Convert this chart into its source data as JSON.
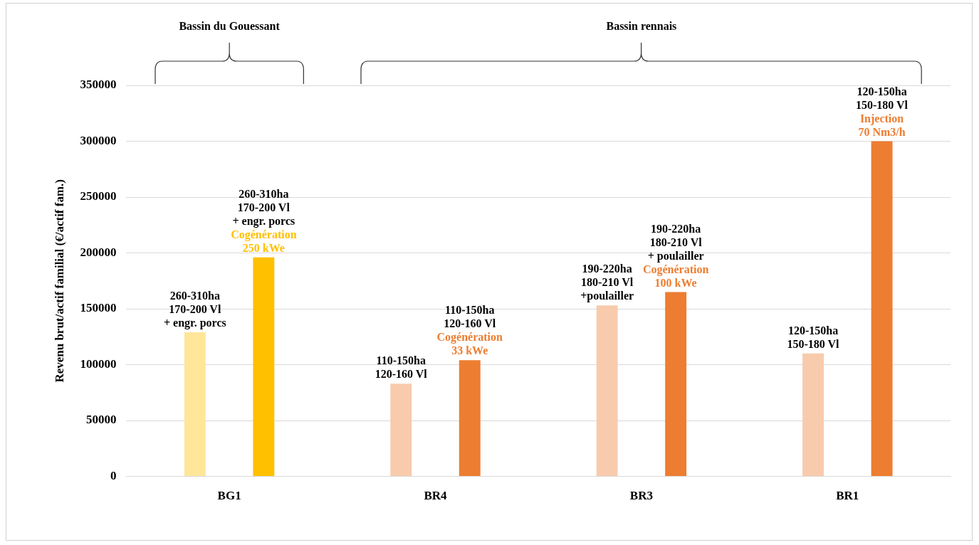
{
  "chart_data": {
    "type": "bar",
    "ylabel": "Revenu brut/actif familial (€/actif fam.)",
    "categories": [
      "BG1",
      "BR4",
      "BR3",
      "BR1"
    ],
    "series": [
      {
        "colors": [
          "#ffe699",
          "#f8cbad",
          "#f8cbad",
          "#f8cbad"
        ],
        "values": [
          129000,
          83000,
          153000,
          110000
        ],
        "value_labels": [
          "260-310ha\n170-200 Vl\n+ engr. porcs",
          "110-150ha\n120-160 Vl",
          "190-220ha\n180-210 Vl\n+poulailler",
          "120-150ha\n150-180 Vl"
        ]
      },
      {
        "colors": [
          "#ffc000",
          "#ed7d31",
          "#ed7d31",
          "#ed7d31"
        ],
        "values": [
          196000,
          104000,
          165000,
          300000
        ],
        "value_labels": [
          "260-310ha\n170-200 Vl\n+ engr. porcs",
          "110-150ha\n120-160 Vl",
          "190-220ha\n180-210 Vl\n+ poulailler",
          "120-150ha\n150-180 Vl"
        ]
      }
    ],
    "ylim": [
      0,
      350000
    ],
    "yticks": [
      0,
      50000,
      100000,
      150000,
      200000,
      250000,
      300000,
      350000
    ],
    "grid": "y",
    "legend": false,
    "annotations": [
      "Bassin du Gouessant",
      "Bassin rennais",
      "Cogénération\n250 kWe",
      "Cogénération\n33 kWe",
      "Cogénération\n100 kWe",
      "Injection\n70 Nm3/h"
    ]
  }
}
